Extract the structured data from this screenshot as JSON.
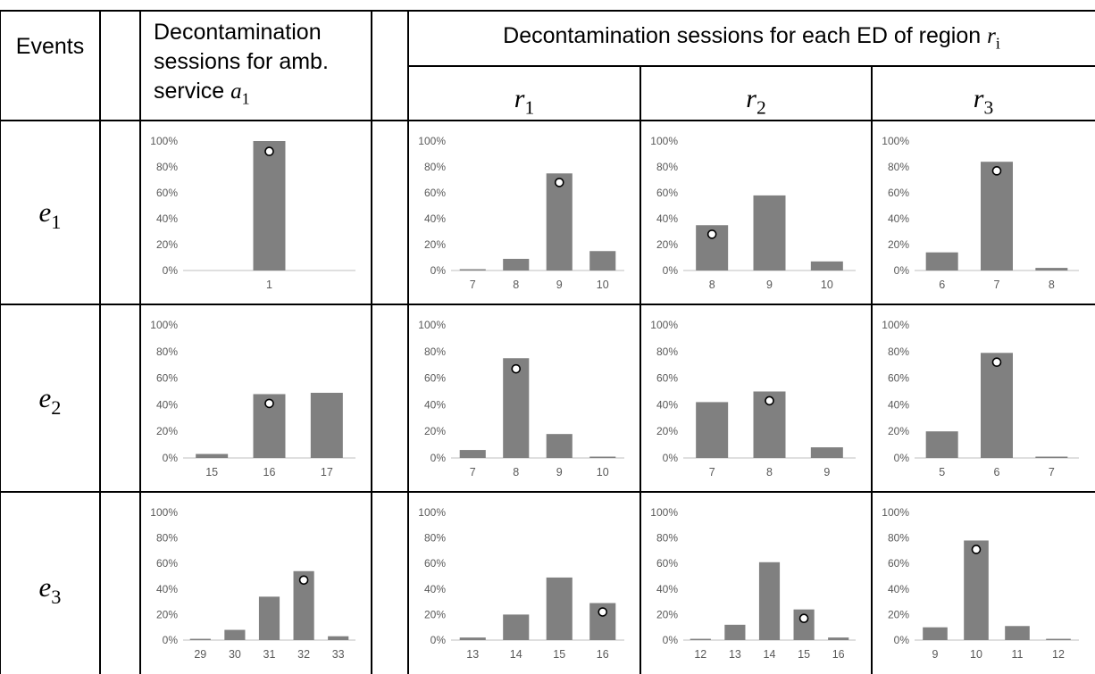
{
  "headers": {
    "events": "Events",
    "amb_line1": "Decontamination",
    "amb_line2": "sessions for amb.",
    "amb_line3": "service",
    "amb_symbol": "a",
    "amb_sub": "1",
    "ed_prefix": "Decontamination sessions for each ED of region",
    "ed_symbol": "r",
    "ed_sub": "i"
  },
  "regions": [
    {
      "symbol": "r",
      "sub": "1"
    },
    {
      "symbol": "r",
      "sub": "2"
    },
    {
      "symbol": "r",
      "sub": "3"
    }
  ],
  "events": [
    {
      "symbol": "e",
      "sub": "1"
    },
    {
      "symbol": "e",
      "sub": "2"
    },
    {
      "symbol": "e",
      "sub": "3"
    }
  ],
  "colors": {
    "bar": "#808080",
    "marker_fill": "#ffffff",
    "marker_stroke": "#000000",
    "grid": "#000000",
    "axis": "#bfbfbf",
    "tick_text": "#595959"
  },
  "chart_data": [
    {
      "type": "bar",
      "event": "e1",
      "column": "a1",
      "categories": [
        "1"
      ],
      "values": [
        100
      ],
      "marker": {
        "category": "1",
        "value": 92
      },
      "ylim": [
        0,
        100
      ],
      "yticks": [
        "0%",
        "20%",
        "40%",
        "60%",
        "80%",
        "100%"
      ]
    },
    {
      "type": "bar",
      "event": "e1",
      "column": "r1",
      "categories": [
        "7",
        "8",
        "9",
        "10"
      ],
      "values": [
        1,
        9,
        75,
        15
      ],
      "marker": {
        "category": "9",
        "value": 68
      },
      "ylim": [
        0,
        100
      ],
      "yticks": [
        "0%",
        "20%",
        "40%",
        "60%",
        "80%",
        "100%"
      ]
    },
    {
      "type": "bar",
      "event": "e1",
      "column": "r2",
      "categories": [
        "8",
        "9",
        "10"
      ],
      "values": [
        35,
        58,
        7
      ],
      "marker": {
        "category": "8",
        "value": 28
      },
      "ylim": [
        0,
        100
      ],
      "yticks": [
        "0%",
        "20%",
        "40%",
        "60%",
        "80%",
        "100%"
      ]
    },
    {
      "type": "bar",
      "event": "e1",
      "column": "r3",
      "categories": [
        "6",
        "7",
        "8"
      ],
      "values": [
        14,
        84,
        2
      ],
      "marker": {
        "category": "7",
        "value": 77
      },
      "ylim": [
        0,
        100
      ],
      "yticks": [
        "0%",
        "20%",
        "40%",
        "60%",
        "80%",
        "100%"
      ]
    },
    {
      "type": "bar",
      "event": "e2",
      "column": "a1",
      "categories": [
        "15",
        "16",
        "17"
      ],
      "values": [
        3,
        48,
        49
      ],
      "marker": {
        "category": "16",
        "value": 41
      },
      "ylim": [
        0,
        100
      ],
      "yticks": [
        "0%",
        "20%",
        "40%",
        "60%",
        "80%",
        "100%"
      ]
    },
    {
      "type": "bar",
      "event": "e2",
      "column": "r1",
      "categories": [
        "7",
        "8",
        "9",
        "10"
      ],
      "values": [
        6,
        75,
        18,
        1
      ],
      "marker": {
        "category": "8",
        "value": 67
      },
      "ylim": [
        0,
        100
      ],
      "yticks": [
        "0%",
        "20%",
        "40%",
        "60%",
        "80%",
        "100%"
      ]
    },
    {
      "type": "bar",
      "event": "e2",
      "column": "r2",
      "categories": [
        "7",
        "8",
        "9"
      ],
      "values": [
        42,
        50,
        8
      ],
      "marker": {
        "category": "8",
        "value": 43
      },
      "ylim": [
        0,
        100
      ],
      "yticks": [
        "0%",
        "20%",
        "40%",
        "60%",
        "80%",
        "100%"
      ]
    },
    {
      "type": "bar",
      "event": "e2",
      "column": "r3",
      "categories": [
        "5",
        "6",
        "7"
      ],
      "values": [
        20,
        79,
        1
      ],
      "marker": {
        "category": "6",
        "value": 72
      },
      "ylim": [
        0,
        100
      ],
      "yticks": [
        "0%",
        "20%",
        "40%",
        "60%",
        "80%",
        "100%"
      ]
    },
    {
      "type": "bar",
      "event": "e3",
      "column": "a1",
      "categories": [
        "29",
        "30",
        "31",
        "32",
        "33"
      ],
      "values": [
        1,
        8,
        34,
        54,
        3
      ],
      "marker": {
        "category": "32",
        "value": 47
      },
      "ylim": [
        0,
        100
      ],
      "yticks": [
        "0%",
        "20%",
        "40%",
        "60%",
        "80%",
        "100%"
      ]
    },
    {
      "type": "bar",
      "event": "e3",
      "column": "r1",
      "categories": [
        "13",
        "14",
        "15",
        "16"
      ],
      "values": [
        2,
        20,
        49,
        29
      ],
      "marker": {
        "category": "16",
        "value": 22
      },
      "ylim": [
        0,
        100
      ],
      "yticks": [
        "0%",
        "20%",
        "40%",
        "60%",
        "80%",
        "100%"
      ]
    },
    {
      "type": "bar",
      "event": "e3",
      "column": "r2",
      "categories": [
        "12",
        "13",
        "14",
        "15",
        "16"
      ],
      "values": [
        1,
        12,
        61,
        24,
        2
      ],
      "marker": {
        "category": "15",
        "value": 17
      },
      "ylim": [
        0,
        100
      ],
      "yticks": [
        "0%",
        "20%",
        "40%",
        "60%",
        "80%",
        "100%"
      ]
    },
    {
      "type": "bar",
      "event": "e3",
      "column": "r3",
      "categories": [
        "9",
        "10",
        "11",
        "12"
      ],
      "values": [
        10,
        78,
        11,
        1
      ],
      "marker": {
        "category": "10",
        "value": 71
      },
      "ylim": [
        0,
        100
      ],
      "yticks": [
        "0%",
        "20%",
        "40%",
        "60%",
        "80%",
        "100%"
      ]
    }
  ]
}
